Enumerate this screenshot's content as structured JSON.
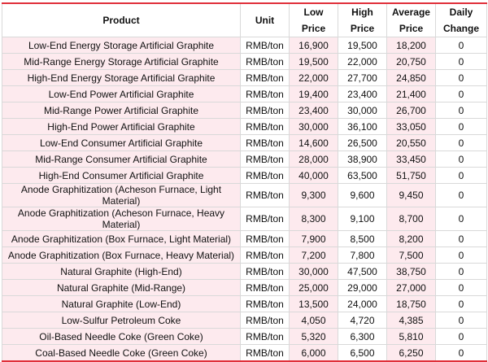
{
  "table": {
    "header": [
      "Product",
      "Unit",
      "Low Price",
      "High Price",
      "Average Price",
      "Daily Change"
    ],
    "rows": [
      [
        "Low-End Energy Storage Artificial Graphite",
        "RMB/ton",
        "16,900",
        "19,500",
        "18,200",
        "0"
      ],
      [
        "Mid-Range Energy Storage Artificial Graphite",
        "RMB/ton",
        "19,500",
        "22,000",
        "20,750",
        "0"
      ],
      [
        "High-End Energy Storage Artificial Graphite",
        "RMB/ton",
        "22,000",
        "27,700",
        "24,850",
        "0"
      ],
      [
        "Low-End Power Artificial Graphite",
        "RMB/ton",
        "19,400",
        "23,400",
        "21,400",
        "0"
      ],
      [
        "Mid-Range Power Artificial Graphite",
        "RMB/ton",
        "23,400",
        "30,000",
        "26,700",
        "0"
      ],
      [
        "High-End Power Artificial Graphite",
        "RMB/ton",
        "30,000",
        "36,100",
        "33,050",
        "0"
      ],
      [
        "Low-End Consumer Artificial Graphite",
        "RMB/ton",
        "14,600",
        "26,500",
        "20,550",
        "0"
      ],
      [
        "Mid-Range Consumer Artificial Graphite",
        "RMB/ton",
        "28,000",
        "38,900",
        "33,450",
        "0"
      ],
      [
        "High-End Consumer Artificial Graphite",
        "RMB/ton",
        "40,000",
        "63,500",
        "51,750",
        "0"
      ],
      [
        "Anode Graphitization (Acheson Furnace, Light Material)",
        "RMB/ton",
        "9,300",
        "9,600",
        "9,450",
        "0"
      ],
      [
        "Anode Graphitization (Acheson Furnace, Heavy Material)",
        "RMB/ton",
        "8,300",
        "9,100",
        "8,700",
        "0"
      ],
      [
        "Anode Graphitization (Box Furnace, Light Material)",
        "RMB/ton",
        "7,900",
        "8,500",
        "8,200",
        "0"
      ],
      [
        "Anode Graphitization (Box Furnace, Heavy Material)",
        "RMB/ton",
        "7,200",
        "7,800",
        "7,500",
        "0"
      ],
      [
        "Natural Graphite (High-End)",
        "RMB/ton",
        "30,000",
        "47,500",
        "38,750",
        "0"
      ],
      [
        "Natural Graphite (Mid-Range)",
        "RMB/ton",
        "25,000",
        "29,000",
        "27,000",
        "0"
      ],
      [
        "Natural Graphite (Low-End)",
        "RMB/ton",
        "13,500",
        "24,000",
        "18,750",
        "0"
      ],
      [
        "Low-Sulfur Petroleum Coke",
        "RMB/ton",
        "4,050",
        "4,720",
        "4,385",
        "0"
      ],
      [
        "Oil-Based Needle Coke (Green Coke)",
        "RMB/ton",
        "5,320",
        "6,300",
        "5,810",
        "0"
      ],
      [
        "Coal-Based Needle Coke (Green Coke)",
        "RMB/ton",
        "6,000",
        "6,500",
        "6,250",
        "0"
      ]
    ]
  }
}
